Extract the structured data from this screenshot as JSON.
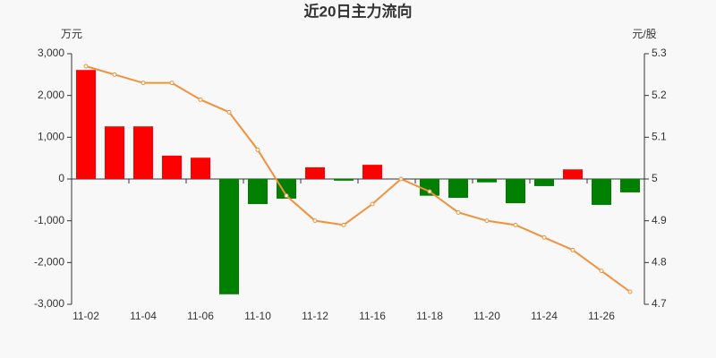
{
  "chart_data": {
    "type": "bar",
    "title": "近20日主力流向",
    "y_unit": "万元",
    "y2_unit": "元/股",
    "categories": [
      "11-02",
      null,
      "11-04",
      null,
      "11-06",
      null,
      "11-10",
      null,
      "11-12",
      null,
      "11-16",
      null,
      "11-18",
      null,
      "11-20",
      null,
      "11-24",
      null,
      "11-26",
      null
    ],
    "series": [
      {
        "type": "bar",
        "color": "#ff0000",
        "negative_color": "#008000",
        "values": [
          2610,
          1260,
          1260,
          560,
          510,
          -2760,
          -600,
          -470,
          280,
          -40,
          340,
          0,
          -400,
          -450,
          -80,
          -580,
          -170,
          230,
          -620,
          -320
        ]
      },
      {
        "type": "line",
        "axis": "y2",
        "color": "#f0913e",
        "values": [
          5.27,
          5.25,
          5.23,
          5.23,
          5.19,
          5.16,
          5.07,
          4.96,
          4.9,
          4.89,
          4.94,
          5.0,
          4.97,
          4.92,
          4.9,
          4.89,
          4.86,
          4.83,
          4.78,
          4.73
        ]
      }
    ],
    "ylim": [
      -3000,
      3000
    ],
    "yticks": [
      {
        "value": -3000,
        "label": "-3,000"
      },
      {
        "value": -2000,
        "label": "-2,000"
      },
      {
        "value": -1000,
        "label": "-1,000"
      },
      0,
      {
        "value": 1000,
        "label": "1,000"
      },
      {
        "value": 2000,
        "label": "2,000"
      },
      {
        "value": 3000,
        "label": "3,000"
      }
    ],
    "y2lim": [
      4.7,
      5.3
    ],
    "y2ticks": [
      4.7,
      4.8,
      4.9,
      5,
      5.1,
      5.2,
      5.3
    ]
  }
}
